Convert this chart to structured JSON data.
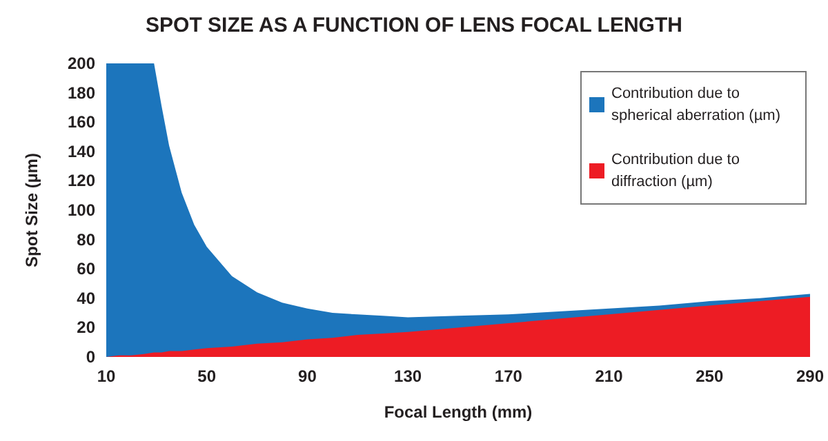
{
  "chart_data": {
    "type": "area",
    "title": "SPOT SIZE AS A FUNCTION OF LENS FOCAL LENGTH",
    "xlabel": "Focal Length (mm)",
    "ylabel": "Spot Size (µm)",
    "x": [
      10,
      15,
      20,
      25,
      29,
      32,
      35,
      40,
      45,
      50,
      60,
      70,
      80,
      90,
      100,
      110,
      120,
      130,
      150,
      170,
      190,
      210,
      230,
      250,
      270,
      290
    ],
    "stacked": true,
    "series": [
      {
        "name": "Contribution due to diffraction (µm)",
        "color": "#ed1c24",
        "values": [
          0,
          1,
          1,
          2,
          3,
          3,
          4,
          4,
          5,
          6,
          7,
          9,
          10,
          12,
          13,
          15,
          16,
          17,
          20,
          23,
          26,
          29,
          32,
          35,
          38,
          41
        ]
      },
      {
        "name": "Contribution due to spherical aberration (µm)",
        "color": "#1c75bc",
        "values": [
          200,
          199,
          199,
          198,
          197,
          168,
          140,
          108,
          85,
          69,
          48,
          35,
          27,
          21,
          17,
          14,
          12,
          10,
          8,
          6,
          5,
          4,
          3,
          3,
          2,
          2
        ]
      }
    ],
    "xlim": [
      10,
      290
    ],
    "xticks": [
      10,
      50,
      90,
      130,
      170,
      210,
      250,
      290
    ],
    "ylim": [
      0,
      200
    ],
    "yticks": [
      0,
      20,
      40,
      60,
      80,
      100,
      120,
      140,
      160,
      180,
      200
    ],
    "legend": "top right",
    "marker": "none"
  }
}
